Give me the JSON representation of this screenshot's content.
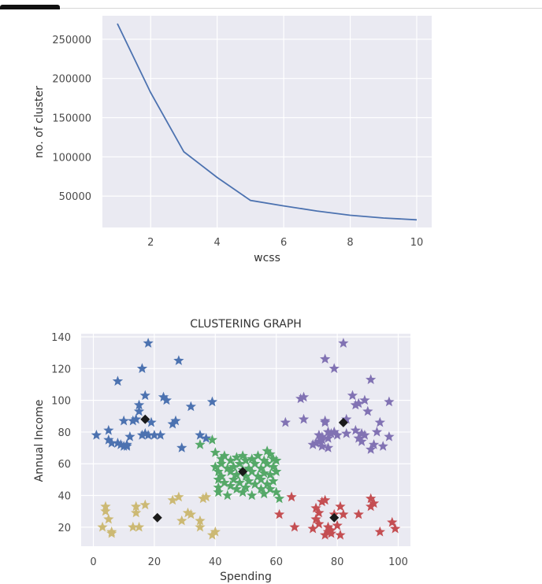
{
  "chart_data": [
    {
      "type": "line",
      "title": "",
      "xlabel": "wcss",
      "ylabel": "no. of cluster",
      "xlim": [
        0.55,
        10.45
      ],
      "ylim": [
        10000,
        280000
      ],
      "xticks": [
        "2",
        "4",
        "6",
        "8",
        "10"
      ],
      "yticks": [
        "50000",
        "100000",
        "150000",
        "200000",
        "250000"
      ],
      "grid": true,
      "x": [
        1,
        2,
        3,
        4,
        5,
        6,
        7,
        8,
        9,
        10
      ],
      "y": [
        270000,
        182000,
        106500,
        73700,
        44500,
        37500,
        31000,
        25600,
        22000,
        19700
      ],
      "line_color": "#4c72b0"
    },
    {
      "type": "scatter",
      "title": "CLUSTERING GRAPH",
      "xlabel": "Spending",
      "ylabel": "Annual Income",
      "xlim": [
        -4,
        104
      ],
      "ylim": [
        8,
        142
      ],
      "xticks": [
        "0",
        "20",
        "40",
        "60",
        "80",
        "100"
      ],
      "yticks": [
        "20",
        "40",
        "60",
        "80",
        "100",
        "120",
        "140"
      ],
      "grid": true,
      "series": [
        {
          "color": "#4c72b0",
          "marker": "star",
          "points": [
            [
              1,
              78
            ],
            [
              5,
              81
            ],
            [
              5,
              75
            ],
            [
              6,
              73
            ],
            [
              8,
              73
            ],
            [
              9,
              72
            ],
            [
              10,
              71
            ],
            [
              11,
              72
            ],
            [
              11,
              71
            ],
            [
              12,
              77
            ],
            [
              13,
              87
            ],
            [
              14,
              88
            ],
            [
              15,
              93
            ],
            [
              15,
              97
            ],
            [
              16,
              78
            ],
            [
              17,
              79
            ],
            [
              16,
              120
            ],
            [
              17,
              103
            ],
            [
              18,
              136
            ],
            [
              18,
              78
            ],
            [
              19,
              86
            ],
            [
              20,
              78
            ],
            [
              22,
              78
            ],
            [
              23,
              102
            ],
            [
              24,
              100
            ],
            [
              26,
              85
            ],
            [
              27,
              87
            ],
            [
              28,
              125
            ],
            [
              29,
              70
            ],
            [
              32,
              96
            ],
            [
              35,
              78
            ],
            [
              37,
              76
            ],
            [
              39,
              99
            ],
            [
              8,
              112
            ],
            [
              10,
              87
            ]
          ]
        },
        {
          "color": "#dd8452",
          "marker": "star",
          "points": []
        },
        {
          "color": "#ccb974",
          "marker": "star",
          "points": [
            [
              3,
              20
            ],
            [
              4,
              33
            ],
            [
              4,
              30
            ],
            [
              5,
              25
            ],
            [
              6,
              16
            ],
            [
              6,
              17
            ],
            [
              13,
              20
            ],
            [
              14,
              33
            ],
            [
              14,
              29
            ],
            [
              15,
              20
            ],
            [
              17,
              34
            ],
            [
              26,
              37
            ],
            [
              28,
              39
            ],
            [
              29,
              24
            ],
            [
              31,
              29
            ],
            [
              32,
              28
            ],
            [
              35,
              24
            ],
            [
              35,
              20
            ],
            [
              36,
              38
            ],
            [
              37,
              39
            ],
            [
              39,
              15
            ],
            [
              40,
              17
            ]
          ]
        },
        {
          "color": "#55a868",
          "marker": "star",
          "points": [
            [
              35,
              72
            ],
            [
              39,
              75
            ],
            [
              40,
              67
            ],
            [
              40,
              58
            ],
            [
              41,
              55
            ],
            [
              41,
              50
            ],
            [
              41,
              45
            ],
            [
              41,
              42
            ],
            [
              42,
              63
            ],
            [
              42,
              60
            ],
            [
              42,
              52
            ],
            [
              43,
              48
            ],
            [
              43,
              65
            ],
            [
              44,
              57
            ],
            [
              44,
              40
            ],
            [
              45,
              55
            ],
            [
              45,
              62
            ],
            [
              45,
              46
            ],
            [
              46,
              50
            ],
            [
              46,
              58
            ],
            [
              47,
              53
            ],
            [
              47,
              44
            ],
            [
              47,
              64
            ],
            [
              48,
              60
            ],
            [
              48,
              48
            ],
            [
              49,
              56
            ],
            [
              49,
              42
            ],
            [
              49,
              65
            ],
            [
              50,
              52
            ],
            [
              50,
              62
            ],
            [
              50,
              45
            ],
            [
              51,
              57
            ],
            [
              51,
              49
            ],
            [
              52,
              63
            ],
            [
              52,
              55
            ],
            [
              52,
              40
            ],
            [
              53,
              60
            ],
            [
              53,
              47
            ],
            [
              54,
              52
            ],
            [
              54,
              65
            ],
            [
              55,
              44
            ],
            [
              55,
              57
            ],
            [
              55,
              50
            ],
            [
              56,
              62
            ],
            [
              56,
              54
            ],
            [
              56,
              41
            ],
            [
              57,
              60
            ],
            [
              57,
              47
            ],
            [
              57,
              68
            ],
            [
              58,
              53
            ],
            [
              58,
              66
            ],
            [
              58,
              44
            ],
            [
              59,
              58
            ],
            [
              59,
              49
            ],
            [
              60,
              62
            ],
            [
              60,
              42
            ],
            [
              61,
              38
            ],
            [
              60,
              55
            ],
            [
              59,
              63
            ]
          ]
        },
        {
          "color": "#c44e52",
          "marker": "star",
          "points": [
            [
              61,
              28
            ],
            [
              65,
              39
            ],
            [
              66,
              20
            ],
            [
              72,
              19
            ],
            [
              73,
              32
            ],
            [
              73,
              25
            ],
            [
              74,
              29
            ],
            [
              74,
              22
            ],
            [
              75,
              36
            ],
            [
              76,
              37
            ],
            [
              76,
              15
            ],
            [
              77,
              20
            ],
            [
              77,
              17
            ],
            [
              78,
              18
            ],
            [
              78,
              16
            ],
            [
              79,
              28
            ],
            [
              80,
              21
            ],
            [
              81,
              15
            ],
            [
              81,
              33
            ],
            [
              82,
              28
            ],
            [
              87,
              28
            ],
            [
              91,
              38
            ],
            [
              91,
              33
            ],
            [
              92,
              35
            ],
            [
              94,
              17
            ],
            [
              98,
              23
            ],
            [
              99,
              19
            ]
          ]
        },
        {
          "color": "#8172b3",
          "marker": "star",
          "points": [
            [
              63,
              86
            ],
            [
              68,
              101
            ],
            [
              69,
              88
            ],
            [
              69,
              102
            ],
            [
              72,
              72
            ],
            [
              73,
              73
            ],
            [
              74,
              78
            ],
            [
              74,
              74
            ],
            [
              75,
              75
            ],
            [
              75,
              71
            ],
            [
              75,
              77
            ],
            [
              76,
              86
            ],
            [
              76,
              87
            ],
            [
              77,
              70
            ],
            [
              77,
              80
            ],
            [
              77,
              76
            ],
            [
              78,
              79
            ],
            [
              79,
              80
            ],
            [
              79,
              120
            ],
            [
              80,
              78
            ],
            [
              82,
              136
            ],
            [
              83,
              79
            ],
            [
              83,
              88
            ],
            [
              85,
              103
            ],
            [
              86,
              97
            ],
            [
              86,
              81
            ],
            [
              87,
              98
            ],
            [
              87,
              76
            ],
            [
              88,
              74
            ],
            [
              88,
              79
            ],
            [
              89,
              100
            ],
            [
              89,
              78
            ],
            [
              90,
              93
            ],
            [
              91,
              69
            ],
            [
              91,
              113
            ],
            [
              92,
              72
            ],
            [
              93,
              80
            ],
            [
              94,
              86
            ],
            [
              95,
              71
            ],
            [
              97,
              99
            ],
            [
              97,
              77
            ],
            [
              76,
              126
            ]
          ]
        }
      ],
      "centroids": {
        "color": "#1a1a1a",
        "marker": "diamond",
        "points": [
          [
            17,
            88
          ],
          [
            21,
            26
          ],
          [
            49,
            55
          ],
          [
            82,
            86
          ],
          [
            79,
            26
          ]
        ]
      }
    }
  ]
}
